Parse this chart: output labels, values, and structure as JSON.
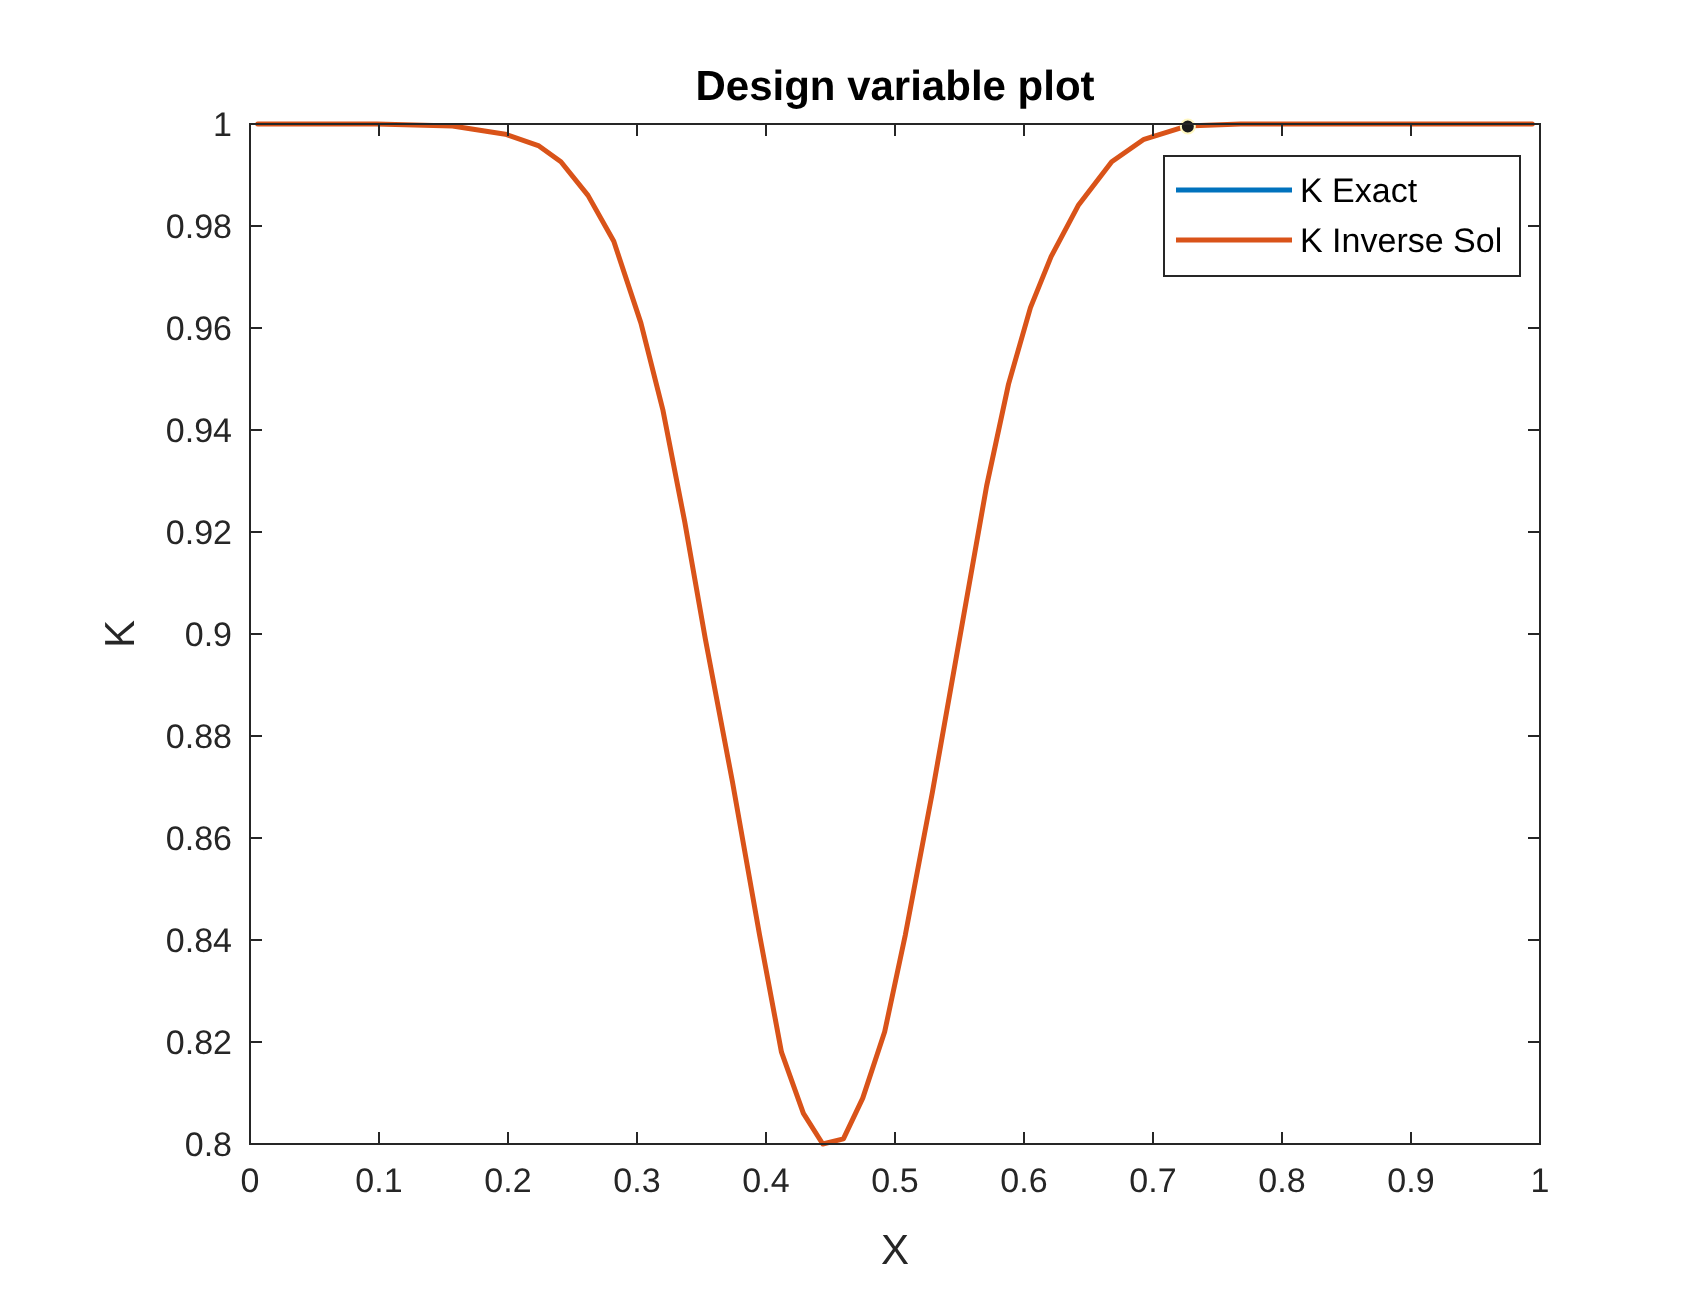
{
  "chart_data": {
    "type": "line",
    "title": "Design variable plot",
    "xlabel": "X",
    "ylabel": "K",
    "xlim": [
      0,
      1
    ],
    "xticks": [
      0,
      0.1,
      0.2,
      0.3,
      0.4,
      0.5,
      0.6,
      0.7,
      0.8,
      0.9,
      1
    ],
    "ylim": [
      0.8,
      1
    ],
    "yticks": [
      0.8,
      0.82,
      0.84,
      0.86,
      0.88,
      0.9,
      0.92,
      0.94,
      0.96,
      0.98,
      1
    ],
    "x": [
      0.006,
      0.098,
      0.157,
      0.198,
      0.224,
      0.241,
      0.262,
      0.282,
      0.303,
      0.32,
      0.337,
      0.353,
      0.374,
      0.395,
      0.412,
      0.429,
      0.444,
      0.46,
      0.475,
      0.492,
      0.508,
      0.529,
      0.55,
      0.571,
      0.588,
      0.605,
      0.621,
      0.642,
      0.668,
      0.693,
      0.726,
      0.768,
      0.994
    ],
    "series": [
      {
        "name": "K Exact",
        "color": "#0072bd",
        "values": [
          null,
          null,
          null,
          null,
          null,
          null,
          null,
          null,
          null,
          null,
          null,
          null,
          null,
          null,
          null,
          null,
          null,
          null,
          null,
          null,
          null,
          null,
          null,
          null,
          null,
          null,
          null,
          null,
          null,
          null,
          null,
          null,
          null
        ]
      },
      {
        "name": "K Inverse Sol",
        "color": "#d95319",
        "values": [
          1,
          1,
          0.9996,
          0.998,
          0.9957,
          0.9926,
          0.986,
          0.977,
          0.961,
          0.944,
          0.922,
          0.899,
          0.871,
          0.841,
          0.818,
          0.806,
          0.8,
          0.801,
          0.809,
          0.822,
          0.841,
          0.869,
          0.899,
          0.929,
          0.949,
          0.964,
          0.974,
          0.984,
          0.9926,
          0.997,
          0.9996,
          1,
          1
        ]
      },
      {
        "type": "scatter",
        "marker": "circle",
        "color": "#1a1a1a",
        "x": [
          0.727
        ],
        "values": [
          0.9995
        ]
      }
    ],
    "legend": "top right",
    "grid": false,
    "line_style": "solid",
    "marker": "none"
  }
}
